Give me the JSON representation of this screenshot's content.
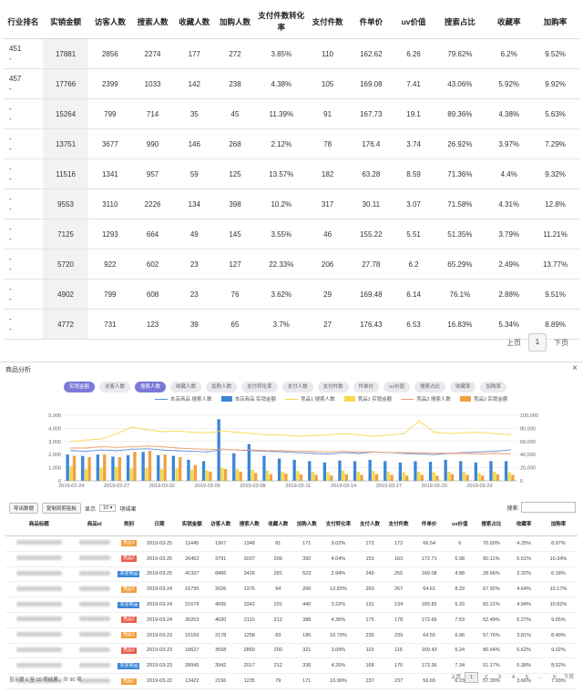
{
  "top_table": {
    "headers": [
      "行业排名",
      "实销金额",
      "访客人数",
      "搜索人数",
      "收藏人数",
      "加购人数",
      "支付件数转化率",
      "支付件数",
      "件单价",
      "uv价值",
      "搜索占比",
      "收藏率",
      "加购率"
    ],
    "rows": [
      [
        "451\n-",
        "17881",
        "2856",
        "2274",
        "177",
        "272",
        "3.85%",
        "110",
        "162.62",
        "6.26",
        "79.62%",
        "6.2%",
        "9.52%"
      ],
      [
        "457\n-",
        "17766",
        "2399",
        "1033",
        "142",
        "238",
        "4.38%",
        "105",
        "169.08",
        "7.41",
        "43.06%",
        "5.92%",
        "9.92%"
      ],
      [
        "-\n-",
        "15264",
        "799",
        "714",
        "35",
        "45",
        "11.39%",
        "91",
        "167.73",
        "19.1",
        "89.36%",
        "4.38%",
        "5.63%"
      ],
      [
        "-\n-",
        "13751",
        "3677",
        "990",
        "146",
        "268",
        "2.12%",
        "78",
        "176.4",
        "3.74",
        "26.92%",
        "3.97%",
        "7.29%"
      ],
      [
        "-\n-",
        "11516",
        "1341",
        "957",
        "59",
        "125",
        "13.57%",
        "182",
        "63.28",
        "8.59",
        "71.36%",
        "4.4%",
        "9.32%"
      ],
      [
        "-\n-",
        "9553",
        "3110",
        "2226",
        "134",
        "398",
        "10.2%",
        "317",
        "30.11",
        "3.07",
        "71.58%",
        "4.31%",
        "12.8%"
      ],
      [
        "-\n-",
        "7125",
        "1293",
        "664",
        "49",
        "145",
        "3.55%",
        "46",
        "155.22",
        "5.51",
        "51.35%",
        "3.79%",
        "11.21%"
      ],
      [
        "-\n-",
        "5720",
        "922",
        "602",
        "23",
        "127",
        "22.33%",
        "206",
        "27.78",
        "6.2",
        "65.29%",
        "2.49%",
        "13.77%"
      ],
      [
        "-\n-",
        "4902",
        "799",
        "608",
        "23",
        "76",
        "3.62%",
        "29",
        "169.48",
        "6.14",
        "76.1%",
        "2.88%",
        "9.51%"
      ],
      [
        "-\n-",
        "4772",
        "731",
        "123",
        "39",
        "65",
        "3.7%",
        "27",
        "176.43",
        "6.53",
        "16.83%",
        "5.34%",
        "8.89%"
      ]
    ],
    "pager": {
      "prev": "上页",
      "current": "1",
      "next": "下页"
    }
  },
  "panel": {
    "title": "商品分析",
    "close": "×",
    "tags": [
      "实销金额",
      "访客人数",
      "搜索人数",
      "收藏人数",
      "加购人数",
      "支付转化率",
      "支付人数",
      "支付件数",
      "件单价",
      "uv价值",
      "搜索占比",
      "收藏率",
      "加购率"
    ],
    "active_tags": [
      0,
      2
    ],
    "legend": [
      {
        "name": "本店商品 搜索人数",
        "type": "line",
        "color": "#5b8bd9"
      },
      {
        "name": "本店商品 实销金额",
        "type": "bar",
        "color": "#3a86d8"
      },
      {
        "name": "竞品1 搜索人数",
        "type": "line",
        "color": "#f5d94a"
      },
      {
        "name": "竞品1 实销金额",
        "type": "bar",
        "color": "#f5d94a"
      },
      {
        "name": "竞品2 搜索人数",
        "type": "line",
        "color": "#ef9b6a"
      },
      {
        "name": "竞品2 实销金额",
        "type": "bar",
        "color": "#f0a040"
      }
    ],
    "controls": {
      "export": "导出数据",
      "copy": "复制到剪贴板",
      "show_label": "显示",
      "page_size": "10",
      "entries_label": "项结果",
      "search_label": "搜索:"
    },
    "footer": "显示第 1 至 10 项结果，共 90 项",
    "pager": [
      "上页",
      "1",
      "2",
      "3",
      "4",
      "5",
      "…",
      "9",
      "下页"
    ]
  },
  "chart_data": {
    "type": "bar",
    "categories": [
      "2019-02-24",
      "2019-02-25",
      "2019-02-26",
      "2019-02-27",
      "2019-02-28",
      "2019-03-01",
      "2019-03-02",
      "2019-03-03",
      "2019-03-04",
      "2019-03-05",
      "2019-03-06",
      "2019-03-07",
      "2019-03-08",
      "2019-03-09",
      "2019-03-10",
      "2019-03-11",
      "2019-03-12",
      "2019-03-13",
      "2019-03-14",
      "2019-03-15",
      "2019-03-16",
      "2019-03-17",
      "2019-03-18",
      "2019-03-19",
      "2019-03-20",
      "2019-03-21",
      "2019-03-22",
      "2019-03-23",
      "2019-03-24",
      "2019-03-25"
    ],
    "x_tick_labels": [
      "2019-02-24",
      "2019-02-27",
      "2019-03-02",
      "2019-03-05",
      "2019-03-08",
      "2019-03-11",
      "2019-03-14",
      "2019-03-17",
      "2019-03-20",
      "2019-03-23"
    ],
    "y_left_ticks": [
      "0",
      "1,000",
      "2,000",
      "3,000",
      "4,000",
      "5,000"
    ],
    "y_right_ticks": [
      "0",
      "20,000",
      "40,000",
      "60,000",
      "80,000",
      "100,000"
    ],
    "ylim_left": [
      0,
      5000
    ],
    "ylim_right": [
      0,
      100000
    ],
    "grid": true,
    "legend_position": "top",
    "series": [
      {
        "name": "本店商品 实销金额",
        "kind": "bar",
        "axis": "left",
        "color": "#3a86d8",
        "values": [
          2000,
          1900,
          2000,
          1850,
          1950,
          2200,
          1950,
          1900,
          1600,
          1500,
          4700,
          2100,
          2800,
          1900,
          1700,
          1600,
          1500,
          1400,
          1550,
          1500,
          1600,
          1500,
          1400,
          1500,
          1450,
          1600,
          1500,
          1400,
          1500,
          1500
        ]
      },
      {
        "name": "竞品1 实销金额",
        "kind": "bar",
        "axis": "left",
        "color": "#f5d94a",
        "values": [
          1100,
          900,
          1000,
          1050,
          950,
          1000,
          900,
          950,
          850,
          800,
          1000,
          900,
          850,
          800,
          700,
          750,
          700,
          650,
          800,
          700,
          750,
          700,
          650,
          700,
          650,
          700,
          650,
          600,
          700,
          650
        ]
      },
      {
        "name": "竞品2 实销金额",
        "kind": "bar",
        "axis": "left",
        "color": "#f0a040",
        "values": [
          1900,
          1800,
          2000,
          1800,
          2200,
          2300,
          2000,
          1800,
          1200,
          700,
          900,
          700,
          600,
          500,
          550,
          500,
          450,
          400,
          500,
          450,
          500,
          450,
          400,
          450,
          400,
          500,
          450,
          400,
          500,
          450
        ]
      },
      {
        "name": "本店商品 搜索人数",
        "kind": "line",
        "axis": "right",
        "color": "#5b8bd9",
        "values": [
          46000,
          45000,
          47000,
          46000,
          48000,
          49000,
          47000,
          46000,
          45000,
          44000,
          48000,
          47000,
          46000,
          45000,
          44000,
          43000,
          42000,
          41000,
          43000,
          42000,
          44000,
          43000,
          42000,
          41000,
          40000,
          42000,
          43000,
          44000,
          45000,
          47000
        ]
      },
      {
        "name": "竞品1 搜索人数",
        "kind": "line",
        "axis": "right",
        "color": "#f5d94a",
        "values": [
          60000,
          62000,
          64000,
          72000,
          82000,
          78000,
          75000,
          76000,
          74000,
          73000,
          76000,
          74000,
          72000,
          70000,
          70000,
          68000,
          69000,
          70000,
          72000,
          70000,
          68000,
          70000,
          72000,
          91000,
          74000,
          72000,
          73000,
          74000,
          72000,
          70000
        ]
      },
      {
        "name": "竞品2 搜索人数",
        "kind": "line",
        "axis": "right",
        "color": "#ef9b6a",
        "values": [
          50000,
          50000,
          52000,
          51000,
          52000,
          53000,
          52000,
          50000,
          49000,
          48000,
          48000,
          47000,
          47000,
          46000,
          46000,
          45000,
          45000,
          44000,
          45000,
          44000,
          44000,
          43000,
          43000,
          43000,
          42000,
          42000,
          42000,
          41000,
          42000,
          41000
        ]
      }
    ]
  },
  "bottom_table": {
    "headers": [
      "商品标题",
      "商品id",
      "类别",
      "日期",
      "实销金额",
      "访客人数",
      "搜索人数",
      "收藏人数",
      "加购人数",
      "支付转化率",
      "支付人数",
      "支付件数",
      "件单价",
      "uv价值",
      "搜索占比",
      "收藏率",
      "加购率"
    ],
    "rows": [
      [
        "",
        "",
        "竞品1",
        "2019-03-25",
        "11445",
        "1907",
        "1348",
        "81",
        "171",
        "9.02%",
        "172",
        "172",
        "66.54",
        "6",
        "70.69%",
        "4.25%",
        "8.97%"
      ],
      [
        "",
        "",
        "竞品2",
        "2019-03-25",
        "26452",
        "3791",
        "3037",
        "209",
        "392",
        "4.04%",
        "153",
        "163",
        "172.71",
        "6.98",
        "80.11%",
        "5.51%",
        "10.34%"
      ],
      [
        "",
        "",
        "本店商品",
        "2019-03-25",
        "41337",
        "8466",
        "2426",
        "281",
        "523",
        "2.94%",
        "249",
        "255",
        "166.08",
        "4.88",
        "28.66%",
        "3.32%",
        "6.18%"
      ],
      [
        "",
        "",
        "竞品1",
        "2019-03-24",
        "16795",
        "2026",
        "1376",
        "94",
        "206",
        "12.83%",
        "260",
        "267",
        "64.61",
        "8.29",
        "67.92%",
        "4.64%",
        "10.17%"
      ],
      [
        "",
        "",
        "本店商品",
        "2019-03-24",
        "21679",
        "4065",
        "3342",
        "201",
        "440",
        "3.22%",
        "131",
        "134",
        "165.82",
        "5.33",
        "82.21%",
        "4.94%",
        "10.82%"
      ],
      [
        "",
        "",
        "竞品2",
        "2019-03-24",
        "30263",
        "4020",
        "2110",
        "212",
        "388",
        "4.36%",
        "175",
        "178",
        "172.66",
        "7.53",
        "52.49%",
        "5.27%",
        "9.65%"
      ],
      [
        "",
        "",
        "竞品1",
        "2019-03-23",
        "15169",
        "2178",
        "1258",
        "83",
        "185",
        "10.79%",
        "235",
        "239",
        "64.55",
        "6.96",
        "57.76%",
        "3.81%",
        "8.49%"
      ],
      [
        "",
        "",
        "竞品2",
        "2019-03-23",
        "18627",
        "3558",
        "2869",
        "200",
        "321",
        "3.09%",
        "110",
        "115",
        "169.43",
        "5.24",
        "80.64%",
        "5.62%",
        "9.02%"
      ],
      [
        "",
        "",
        "本店商品",
        "2019-03-23",
        "28945",
        "3942",
        "2017",
        "212",
        "336",
        "4.26%",
        "168",
        "170",
        "172.36",
        "7.34",
        "51.17%",
        "5.38%",
        "8.52%"
      ],
      [
        "",
        "",
        "竞品1",
        "2019-03-22",
        "13422",
        "2156",
        "1235",
        "79",
        "171",
        "10.99%",
        "237",
        "237",
        "56.65",
        "6.23",
        "57.28%",
        "3.66%",
        "7.93%"
      ]
    ],
    "category_colors": {
      "竞品1": "#f0a040",
      "竞品2": "#e85d4a",
      "本店商品": "#3a86d8"
    }
  }
}
